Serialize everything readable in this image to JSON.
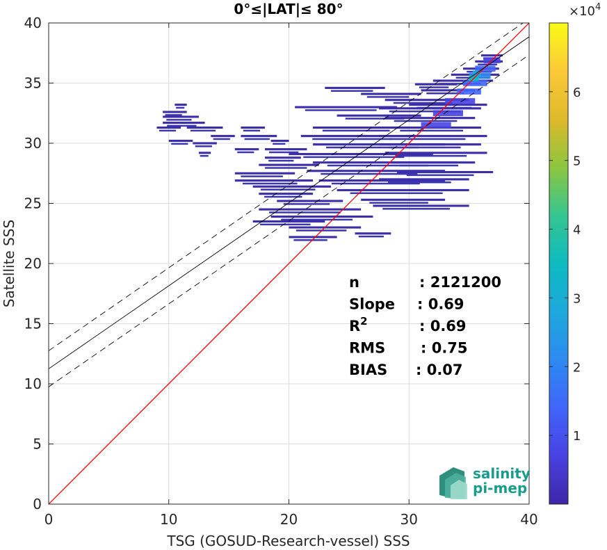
{
  "chart_data": {
    "type": "heatmap",
    "title": "0°≤|LAT|≤ 80°",
    "xlabel": "TSG (GOSUD-Research-vessel) SSS",
    "ylabel": "Satellite SSS",
    "xlim": [
      0,
      40
    ],
    "ylim": [
      0,
      40
    ],
    "x_ticks": [
      "0",
      "10",
      "20",
      "30",
      "40"
    ],
    "y_ticks": [
      "0",
      "5",
      "10",
      "15",
      "20",
      "25",
      "30",
      "35",
      "40"
    ],
    "grid": true,
    "colormap": "parula",
    "colorbar": {
      "multiplier": "×10",
      "exponent": "4",
      "range": [
        0,
        70000
      ],
      "ticks": [
        "1",
        "2",
        "3",
        "4",
        "5",
        "6"
      ],
      "tick_values": [
        1,
        2,
        3,
        4,
        5,
        6
      ]
    },
    "identity_line": {
      "x": [
        0,
        40
      ],
      "y": [
        0,
        40
      ],
      "color": "#ff0000"
    },
    "regression_line": {
      "intercept": 11.25,
      "slope": 0.69,
      "color": "#000000"
    },
    "confidence_band": {
      "offset": 1.5,
      "style": "dashed",
      "color": "#000000"
    },
    "stats": [
      {
        "key": "n",
        "value": ": 2121200"
      },
      {
        "key": "Slope",
        "value": ": 0.69"
      },
      {
        "key": "R",
        "sup": "2",
        "value": ": 0.69"
      },
      {
        "key": "RMS",
        "value": ": 0.75"
      },
      {
        "key": "BIAS",
        "value": ": 0.07"
      }
    ],
    "density_segments": [
      [
        9.5,
        12.5,
        32.2
      ],
      [
        9.5,
        11.5,
        32.6
      ],
      [
        10.5,
        11.5,
        33.2
      ],
      [
        9.5,
        13.0,
        31.7
      ],
      [
        9.0,
        11.0,
        31.3
      ],
      [
        11.5,
        14.5,
        31.3
      ],
      [
        13.5,
        15.5,
        30.6
      ],
      [
        10.0,
        12.0,
        30.2
      ],
      [
        12.0,
        14.0,
        30.0
      ],
      [
        12.5,
        13.5,
        29.2
      ],
      [
        16.0,
        18.0,
        31.3
      ],
      [
        16.0,
        19.0,
        30.6
      ],
      [
        15.5,
        17.5,
        29.5
      ],
      [
        18.5,
        20.0,
        30.2
      ],
      [
        18.0,
        21.5,
        29.5
      ],
      [
        18.0,
        21.0,
        28.8
      ],
      [
        17.5,
        22.5,
        28.2
      ],
      [
        15.5,
        20.5,
        27.5
      ],
      [
        15.5,
        22.0,
        26.9
      ],
      [
        17.0,
        23.5,
        26.4
      ],
      [
        17.5,
        22.0,
        25.8
      ],
      [
        19.0,
        24.5,
        25.2
      ],
      [
        17.5,
        26.0,
        24.5
      ],
      [
        18.5,
        27.0,
        23.9
      ],
      [
        17.0,
        23.0,
        23.5
      ],
      [
        20.0,
        26.0,
        23.0
      ],
      [
        20.0,
        24.0,
        22.2
      ],
      [
        25.5,
        28.5,
        22.5
      ],
      [
        20.5,
        29.0,
        33.0
      ],
      [
        24.0,
        31.0,
        32.3
      ],
      [
        22.0,
        30.0,
        31.3
      ],
      [
        21.0,
        30.5,
        30.6
      ],
      [
        22.0,
        33.0,
        29.9
      ],
      [
        20.0,
        32.0,
        29.1
      ],
      [
        22.0,
        34.0,
        28.4
      ],
      [
        21.5,
        33.0,
        27.7
      ],
      [
        22.5,
        33.0,
        26.9
      ],
      [
        24.0,
        35.0,
        26.1
      ],
      [
        26.0,
        33.0,
        25.3
      ],
      [
        27.0,
        35.0,
        24.8
      ],
      [
        23.0,
        28.0,
        34.6
      ],
      [
        26.0,
        31.0,
        34.1
      ],
      [
        28.0,
        35.0,
        33.6
      ],
      [
        27.5,
        36.0,
        32.9
      ],
      [
        28.0,
        35.5,
        32.1
      ],
      [
        28.5,
        36.0,
        31.3
      ],
      [
        27.5,
        36.5,
        30.6
      ],
      [
        27.5,
        36.0,
        29.9
      ],
      [
        28.0,
        36.5,
        29.2
      ],
      [
        28.5,
        35.5,
        28.4
      ],
      [
        29.0,
        37.0,
        27.6
      ],
      [
        27.5,
        35.0,
        27.0
      ],
      [
        30.5,
        34.0,
        34.9
      ],
      [
        31.0,
        35.5,
        34.4
      ],
      [
        32.0,
        37.0,
        35.2
      ],
      [
        33.5,
        37.5,
        35.7
      ],
      [
        34.5,
        37.5,
        36.2
      ],
      [
        35.5,
        37.8,
        36.8
      ],
      [
        36.0,
        37.8,
        37.3
      ],
      [
        30.0,
        36.5,
        33.2
      ]
    ],
    "density_core": [
      [
        31.0,
        33.5,
        31.5,
        0.06
      ],
      [
        32.0,
        34.5,
        32.5,
        0.09
      ],
      [
        33.0,
        35.5,
        33.5,
        0.12
      ],
      [
        34.0,
        36.0,
        34.3,
        0.16
      ],
      [
        34.5,
        36.5,
        35.0,
        0.22
      ],
      [
        35.0,
        36.8,
        35.6,
        0.28
      ],
      [
        35.5,
        37.2,
        36.2,
        0.22
      ],
      [
        36.2,
        37.6,
        36.9,
        0.14
      ],
      [
        35.0,
        35.8,
        35.4,
        0.45
      ],
      [
        35.3,
        36.0,
        35.8,
        0.38
      ]
    ]
  },
  "logo": {
    "line1": "salinity",
    "line2": "pi-mep"
  }
}
